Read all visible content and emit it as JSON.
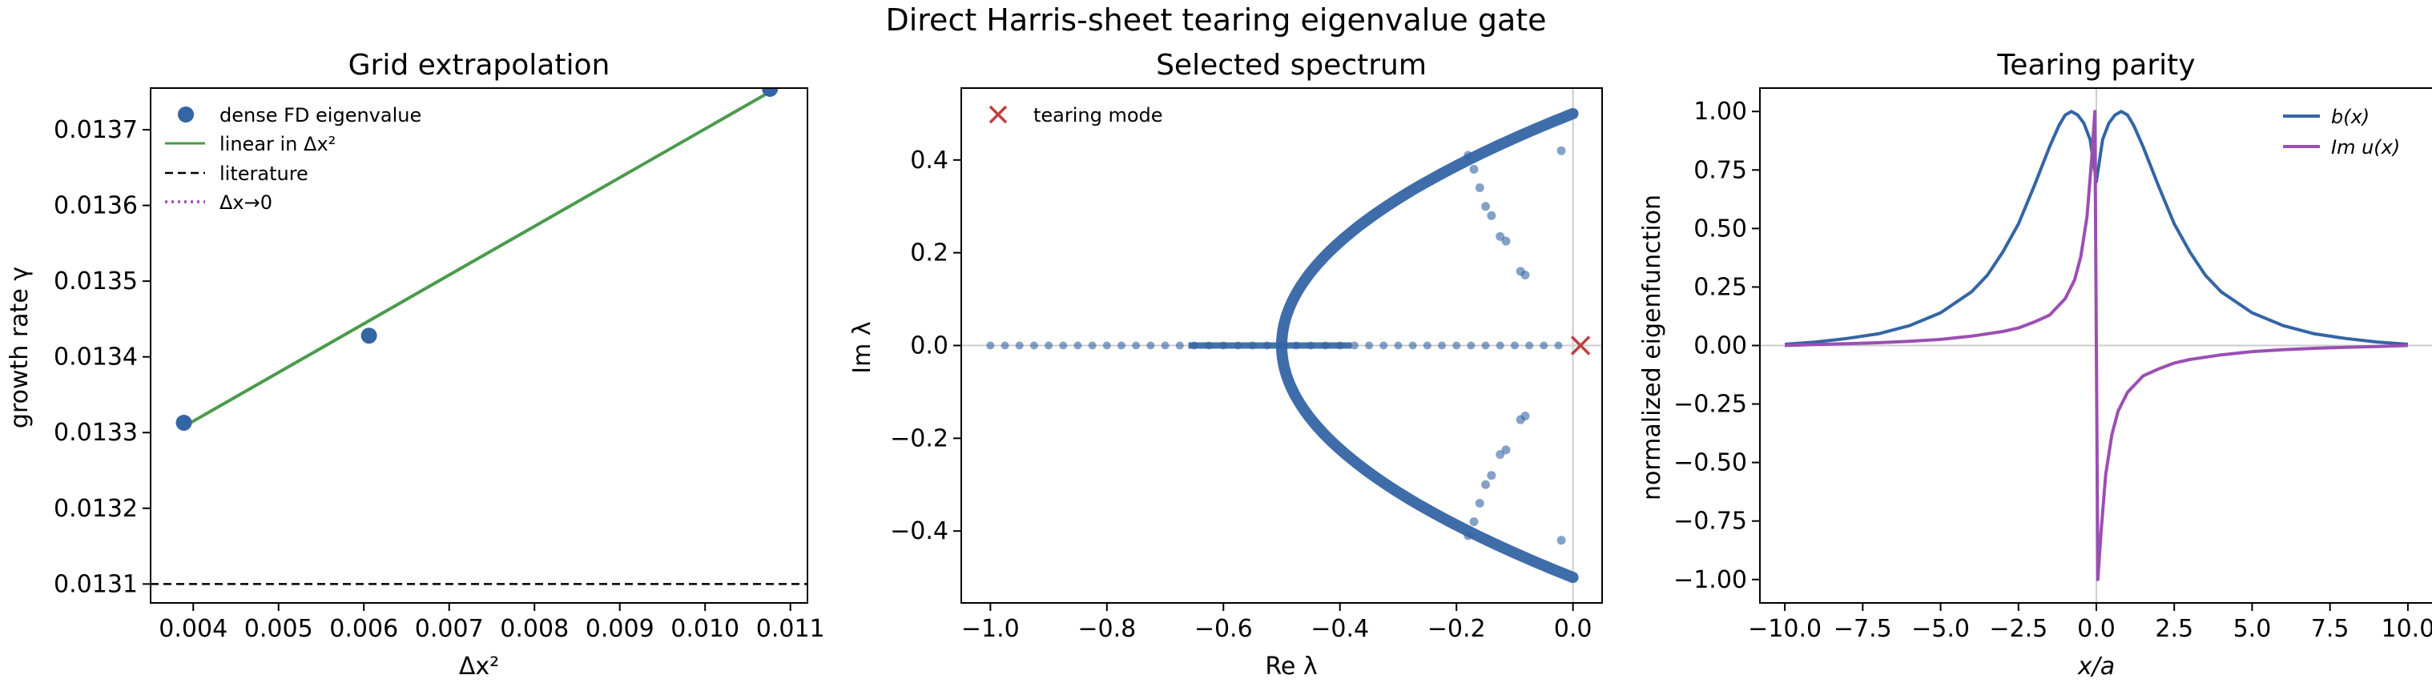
{
  "figure": {
    "suptitle": "Direct Harris-sheet tearing eigenvalue gate"
  },
  "chart_data": [
    {
      "type": "scatter",
      "title": "Grid extrapolation",
      "xlabel": "Δx²",
      "ylabel": "growth rate γ",
      "xlim": [
        0.0035,
        0.0112
      ],
      "ylim": [
        0.013075,
        0.013755
      ],
      "xticks": [
        0.004,
        0.005,
        0.006,
        0.007,
        0.008,
        0.009,
        0.01,
        0.011
      ],
      "xtick_labels": [
        "0.004",
        "0.005",
        "0.006",
        "0.007",
        "0.008",
        "0.009",
        "0.010",
        "0.011"
      ],
      "yticks": [
        0.0131,
        0.0132,
        0.0133,
        0.0134,
        0.0135,
        0.0136,
        0.0137
      ],
      "ytick_labels": [
        "0.0131",
        "0.0132",
        "0.0133",
        "0.0134",
        "0.0135",
        "0.0136",
        "0.0137"
      ],
      "legend_position": "top-left",
      "series": [
        {
          "name": "dense FD eigenvalue",
          "kind": "points",
          "color": "#3465a4",
          "x": [
            0.00389,
            0.00606,
            0.01076
          ],
          "y": [
            0.013313,
            0.013428,
            0.013754
          ]
        },
        {
          "name": "linear in Δx²",
          "kind": "line",
          "color": "#4c9a4c",
          "x": [
            0.00389,
            0.01076
          ],
          "y": [
            0.013308,
            0.01375
          ]
        },
        {
          "name": "literature",
          "kind": "hline-dashed",
          "color": "#000000",
          "y": 0.0131
        },
        {
          "name": "Δx→0",
          "kind": "hline-dotted",
          "color": "#9b4fb3",
          "y": 0.01305
        }
      ]
    },
    {
      "type": "scatter",
      "title": "Selected spectrum",
      "xlabel": "Re λ",
      "ylabel": "Im λ",
      "xlim": [
        -1.05,
        0.05
      ],
      "ylim": [
        -0.555,
        0.555
      ],
      "xticks": [
        -1.0,
        -0.8,
        -0.6,
        -0.4,
        -0.2,
        0.0
      ],
      "xtick_labels": [
        "−1.0",
        "−0.8",
        "−0.6",
        "−0.4",
        "−0.2",
        "0.0"
      ],
      "yticks": [
        -0.4,
        -0.2,
        0.0,
        0.2,
        0.4
      ],
      "ytick_labels": [
        "−0.4",
        "−0.2",
        "0.0",
        "0.2",
        "0.4"
      ],
      "legend_position": "top-left",
      "marker_color": "#3465a4",
      "highlight": {
        "name": "tearing mode",
        "re": 0.013,
        "im": 0.0,
        "color": "#c04040"
      },
      "branch": {
        "re_vertex": -0.5,
        "im_max": 0.5
      },
      "real_axis_points": [
        -1.0,
        -0.975,
        -0.95,
        -0.925,
        -0.9,
        -0.875,
        -0.85,
        -0.825,
        -0.8,
        -0.775,
        -0.75,
        -0.725,
        -0.7,
        -0.675,
        -0.65,
        -0.625,
        -0.6,
        -0.575,
        -0.55,
        -0.525,
        -0.5,
        -0.475,
        -0.45,
        -0.425,
        -0.4,
        -0.375,
        -0.35,
        -0.325,
        -0.3,
        -0.275,
        -0.25,
        -0.225,
        -0.2,
        -0.175,
        -0.15,
        -0.125,
        -0.1,
        -0.075,
        -0.05,
        -0.025
      ],
      "scattered_points": [
        [
          -0.18,
          0.41
        ],
        [
          -0.17,
          0.38
        ],
        [
          -0.16,
          0.34
        ],
        [
          -0.15,
          0.3
        ],
        [
          -0.14,
          0.28
        ],
        [
          -0.125,
          0.235
        ],
        [
          -0.115,
          0.225
        ],
        [
          -0.09,
          0.16
        ],
        [
          -0.082,
          0.152
        ],
        [
          -0.02,
          0.42
        ],
        [
          -0.18,
          -0.41
        ],
        [
          -0.17,
          -0.38
        ],
        [
          -0.16,
          -0.34
        ],
        [
          -0.15,
          -0.3
        ],
        [
          -0.14,
          -0.28
        ],
        [
          -0.125,
          -0.235
        ],
        [
          -0.115,
          -0.225
        ],
        [
          -0.09,
          -0.16
        ],
        [
          -0.082,
          -0.152
        ],
        [
          -0.02,
          -0.42
        ]
      ]
    },
    {
      "type": "line",
      "title": "Tearing parity",
      "xlabel": "x/a",
      "ylabel": "normalized eigenfunction",
      "xlim": [
        -10.8,
        10.8
      ],
      "ylim": [
        -1.1,
        1.1
      ],
      "xticks": [
        -10.0,
        -7.5,
        -5.0,
        -2.5,
        0.0,
        2.5,
        5.0,
        7.5,
        10.0
      ],
      "xtick_labels": [
        "−10.0",
        "−7.5",
        "−5.0",
        "−2.5",
        "0.0",
        "2.5",
        "5.0",
        "7.5",
        "10.0"
      ],
      "yticks": [
        -1.0,
        -0.75,
        -0.5,
        -0.25,
        0.0,
        0.25,
        0.5,
        0.75,
        1.0
      ],
      "ytick_labels": [
        "−1.00",
        "−0.75",
        "−0.50",
        "−0.25",
        "0.00",
        "0.25",
        "0.50",
        "0.75",
        "1.00"
      ],
      "legend_position": "top-right",
      "series": [
        {
          "name": "b(x)",
          "color": "#3465a4",
          "x": [
            -10,
            -9,
            -8,
            -7,
            -6,
            -5,
            -4,
            -3.5,
            -3,
            -2.5,
            -2,
            -1.5,
            -1.2,
            -1.0,
            -0.8,
            -0.6,
            -0.4,
            -0.2,
            0,
            0.2,
            0.4,
            0.6,
            0.8,
            1.0,
            1.2,
            1.5,
            2,
            2.5,
            3,
            3.5,
            4,
            5,
            6,
            7,
            8,
            9,
            10
          ],
          "y": [
            0.005,
            0.015,
            0.03,
            0.05,
            0.085,
            0.14,
            0.23,
            0.3,
            0.4,
            0.52,
            0.68,
            0.85,
            0.94,
            0.985,
            1.0,
            0.985,
            0.95,
            0.88,
            0.7,
            0.88,
            0.95,
            0.985,
            1.0,
            0.985,
            0.94,
            0.85,
            0.68,
            0.52,
            0.4,
            0.3,
            0.23,
            0.14,
            0.085,
            0.05,
            0.03,
            0.015,
            0.005
          ]
        },
        {
          "name": "Im u(x)",
          "color": "#9b4fb3",
          "x": [
            -10,
            -9,
            -8,
            -7,
            -6,
            -5,
            -4,
            -3,
            -2.5,
            -2,
            -1.5,
            -1.0,
            -0.7,
            -0.5,
            -0.3,
            -0.15,
            -0.05,
            0,
            0.05,
            0.15,
            0.3,
            0.5,
            0.7,
            1.0,
            1.5,
            2,
            2.5,
            3,
            4,
            5,
            6,
            7,
            8,
            9,
            10
          ],
          "y": [
            0.0,
            0.004,
            0.008,
            0.012,
            0.018,
            0.026,
            0.04,
            0.06,
            0.075,
            0.1,
            0.13,
            0.2,
            0.28,
            0.38,
            0.55,
            0.8,
            1.0,
            0.0,
            -1.0,
            -0.8,
            -0.55,
            -0.38,
            -0.28,
            -0.2,
            -0.13,
            -0.1,
            -0.075,
            -0.06,
            -0.04,
            -0.026,
            -0.018,
            -0.012,
            -0.008,
            -0.004,
            0.0
          ]
        }
      ]
    }
  ]
}
